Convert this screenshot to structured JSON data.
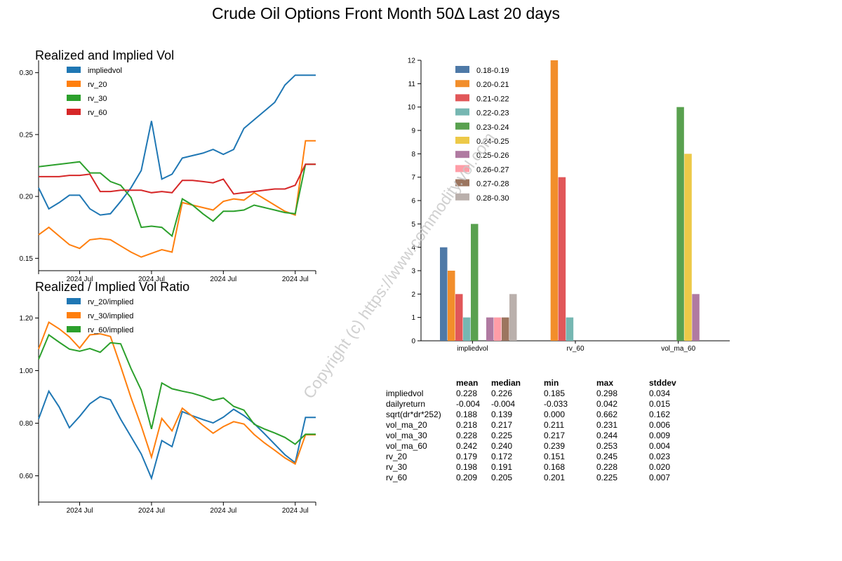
{
  "page_title": "Crude Oil Options Front Month 50Δ Last 20 days",
  "watermark": "Copyright (c) https://www.commodity.vol.com",
  "chart_data": [
    {
      "id": "vol-lines",
      "type": "line",
      "title": "Realized and Implied Vol",
      "x_tick_labels": [
        "2024 Jul",
        "2024 Jul",
        "2024 Jul",
        "2024 Jul"
      ],
      "x_tick_positions": [
        4,
        11,
        18,
        25
      ],
      "x_range": [
        0,
        27
      ],
      "ylim": [
        0.14,
        0.31
      ],
      "y_ticks": [
        0.15,
        0.2,
        0.25,
        0.3
      ],
      "legend_position": "top-left",
      "x": [
        0,
        1,
        2,
        3,
        4,
        5,
        6,
        7,
        8,
        9,
        10,
        11,
        12,
        13,
        14,
        15,
        16,
        17,
        18,
        19,
        20,
        21,
        22,
        23,
        24,
        25,
        26,
        27
      ],
      "series": [
        {
          "name": "impliedvol",
          "color": "#1f77b4",
          "values": [
            0.207,
            0.19,
            0.195,
            0.201,
            0.201,
            0.19,
            0.185,
            0.186,
            0.196,
            0.207,
            0.221,
            0.261,
            0.214,
            0.218,
            0.231,
            0.233,
            0.235,
            0.238,
            0.234,
            0.238,
            0.255,
            0.262,
            0.269,
            0.276,
            0.29,
            0.298,
            0.298,
            0.298
          ]
        },
        {
          "name": "rv_20",
          "color": "#ff7f0e",
          "values": [
            0.169,
            0.175,
            0.168,
            0.161,
            0.158,
            0.165,
            0.166,
            0.165,
            0.16,
            0.155,
            0.151,
            0.154,
            0.157,
            0.155,
            0.195,
            0.193,
            0.191,
            0.189,
            0.196,
            0.198,
            0.197,
            0.203,
            0.198,
            0.193,
            0.188,
            0.185,
            0.245,
            0.245
          ]
        },
        {
          "name": "rv_30",
          "color": "#2ca02c",
          "values": [
            0.224,
            0.225,
            0.226,
            0.227,
            0.228,
            0.219,
            0.219,
            0.212,
            0.209,
            0.199,
            0.175,
            0.176,
            0.175,
            0.168,
            0.198,
            0.193,
            0.186,
            0.18,
            0.188,
            0.188,
            0.189,
            0.193,
            0.191,
            0.189,
            0.187,
            0.186,
            0.226,
            0.226
          ]
        },
        {
          "name": "rv_60",
          "color": "#d62728",
          "values": [
            0.216,
            0.216,
            0.216,
            0.217,
            0.217,
            0.218,
            0.204,
            0.204,
            0.205,
            0.205,
            0.205,
            0.203,
            0.204,
            0.203,
            0.213,
            0.213,
            0.212,
            0.211,
            0.214,
            0.202,
            0.203,
            0.204,
            0.205,
            0.206,
            0.206,
            0.209,
            0.226,
            0.226
          ]
        }
      ]
    },
    {
      "id": "ratio-lines",
      "type": "line",
      "title": "Realized / Implied Vol Ratio",
      "x_tick_labels": [
        "2024 Jul",
        "2024 Jul",
        "2024 Jul",
        "2024 Jul"
      ],
      "x_tick_positions": [
        4,
        11,
        18,
        25
      ],
      "x_range": [
        0,
        27
      ],
      "ylim": [
        0.5,
        1.3
      ],
      "y_ticks": [
        0.6,
        0.8,
        1.0,
        1.2
      ],
      "legend_position": "top-left",
      "x": [
        0,
        1,
        2,
        3,
        4,
        5,
        6,
        7,
        8,
        9,
        10,
        11,
        12,
        13,
        14,
        15,
        16,
        17,
        18,
        19,
        20,
        21,
        22,
        23,
        24,
        25,
        26,
        27
      ],
      "series": [
        {
          "name": "rv_20/implied",
          "color": "#1f77b4",
          "values": [
            0.816,
            0.922,
            0.862,
            0.783,
            0.826,
            0.874,
            0.901,
            0.889,
            0.815,
            0.749,
            0.683,
            0.591,
            0.734,
            0.711,
            0.844,
            0.828,
            0.814,
            0.801,
            0.823,
            0.853,
            0.829,
            0.799,
            0.76,
            0.72,
            0.68,
            0.65,
            0.822,
            0.822
          ]
        },
        {
          "name": "rv_30/implied",
          "color": "#ff7f0e",
          "values": [
            1.082,
            1.184,
            1.159,
            1.128,
            1.086,
            1.136,
            1.14,
            1.13,
            1.016,
            0.897,
            0.79,
            0.671,
            0.818,
            0.771,
            0.857,
            0.826,
            0.792,
            0.762,
            0.787,
            0.806,
            0.797,
            0.757,
            0.725,
            0.697,
            0.668,
            0.645,
            0.756,
            0.756
          ]
        },
        {
          "name": "rv_60/implied",
          "color": "#2ca02c",
          "values": [
            1.043,
            1.136,
            1.108,
            1.082,
            1.074,
            1.084,
            1.07,
            1.106,
            1.102,
            1.008,
            0.926,
            0.778,
            0.953,
            0.931,
            0.922,
            0.914,
            0.902,
            0.887,
            0.896,
            0.864,
            0.85,
            0.796,
            0.778,
            0.763,
            0.746,
            0.72,
            0.758,
            0.758
          ]
        }
      ]
    },
    {
      "id": "histogram-bars",
      "type": "bar",
      "title": "",
      "categories": [
        "impliedvol",
        "rv_60",
        "vol_ma_60"
      ],
      "ylim": [
        0,
        12
      ],
      "y_ticks": [
        0,
        1,
        2,
        3,
        4,
        5,
        6,
        7,
        8,
        9,
        10,
        11,
        12
      ],
      "legend_position": "top-left",
      "series": [
        {
          "name": "0.18-0.19",
          "color": "#4e79a7",
          "values": [
            4,
            0,
            0
          ]
        },
        {
          "name": "0.20-0.21",
          "color": "#f28e2b",
          "values": [
            3,
            12,
            0
          ]
        },
        {
          "name": "0.21-0.22",
          "color": "#e15759",
          "values": [
            2,
            7,
            0
          ]
        },
        {
          "name": "0.22-0.23",
          "color": "#76b7b2",
          "values": [
            1,
            1,
            0
          ]
        },
        {
          "name": "0.23-0.24",
          "color": "#59a14f",
          "values": [
            5,
            0,
            10
          ]
        },
        {
          "name": "0.24-0.25",
          "color": "#edc948",
          "values": [
            0,
            0,
            8
          ]
        },
        {
          "name": "0.25-0.26",
          "color": "#b07aa1",
          "values": [
            1,
            0,
            2
          ]
        },
        {
          "name": "0.26-0.27",
          "color": "#ff9da7",
          "values": [
            1,
            0,
            0
          ]
        },
        {
          "name": "0.27-0.28",
          "color": "#9c755f",
          "values": [
            1,
            0,
            0
          ]
        },
        {
          "name": "0.28-0.30",
          "color": "#bab0ac",
          "values": [
            2,
            0,
            0
          ]
        }
      ]
    },
    {
      "id": "stats-table",
      "type": "table",
      "columns": [
        "mean",
        "median",
        "min",
        "max",
        "stddev"
      ],
      "rows": [
        {
          "label": "impliedvol",
          "values": [
            "0.228",
            "0.226",
            "0.185",
            "0.298",
            "0.034"
          ]
        },
        {
          "label": "dailyreturn",
          "values": [
            "-0.004",
            "-0.004",
            "-0.033",
            "0.042",
            "0.015"
          ]
        },
        {
          "label": "sqrt(dr*dr*252)",
          "values": [
            "0.188",
            "0.139",
            "0.000",
            "0.662",
            "0.162"
          ]
        },
        {
          "label": "vol_ma_20",
          "values": [
            "0.218",
            "0.217",
            "0.211",
            "0.231",
            "0.006"
          ]
        },
        {
          "label": "vol_ma_30",
          "values": [
            "0.228",
            "0.225",
            "0.217",
            "0.244",
            "0.009"
          ]
        },
        {
          "label": "vol_ma_60",
          "values": [
            "0.242",
            "0.240",
            "0.239",
            "0.253",
            "0.004"
          ]
        },
        {
          "label": "rv_20",
          "values": [
            "0.179",
            "0.172",
            "0.151",
            "0.245",
            "0.023"
          ]
        },
        {
          "label": "rv_30",
          "values": [
            "0.198",
            "0.191",
            "0.168",
            "0.228",
            "0.020"
          ]
        },
        {
          "label": "rv_60",
          "values": [
            "0.209",
            "0.205",
            "0.201",
            "0.225",
            "0.007"
          ]
        }
      ]
    }
  ]
}
